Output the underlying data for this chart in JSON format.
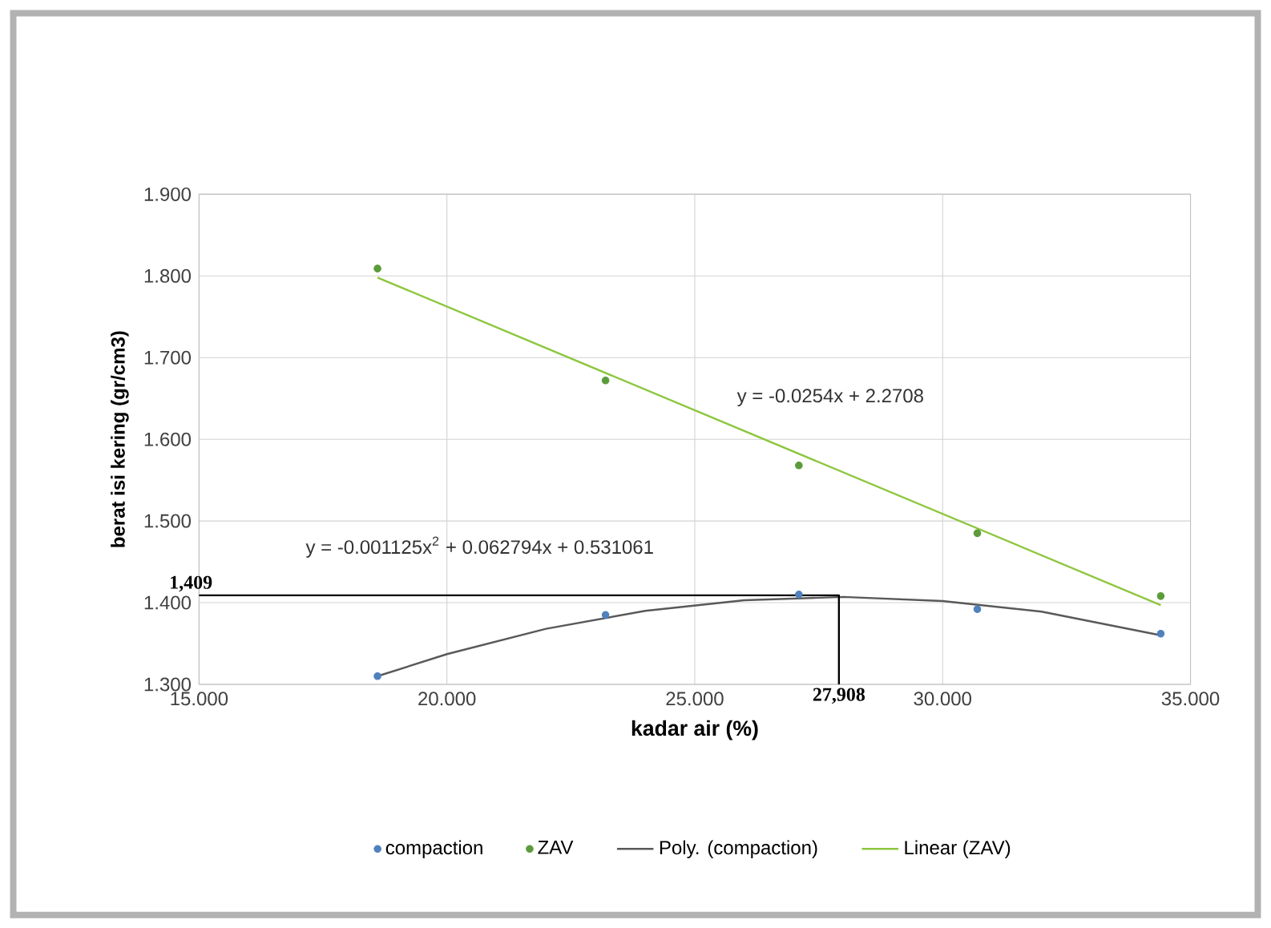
{
  "chart_data": {
    "type": "scatter",
    "xlabel": "kadar air (%)",
    "ylabel": "berat isi kering (gr/cm3)",
    "xlim": [
      15,
      35
    ],
    "ylim": [
      1.3,
      1.9
    ],
    "xticks": [
      {
        "value": 15,
        "label": "15.000"
      },
      {
        "value": 20,
        "label": "20.000"
      },
      {
        "value": 25,
        "label": "25.000"
      },
      {
        "value": 30,
        "label": "30.000"
      },
      {
        "value": 35,
        "label": "35.000"
      }
    ],
    "yticks": [
      {
        "value": 1.3,
        "label": "1.300"
      },
      {
        "value": 1.4,
        "label": "1.400"
      },
      {
        "value": 1.5,
        "label": "1.500"
      },
      {
        "value": 1.6,
        "label": "1.600"
      },
      {
        "value": 1.7,
        "label": "1.700"
      },
      {
        "value": 1.8,
        "label": "1.800"
      },
      {
        "value": 1.9,
        "label": "1.900"
      }
    ],
    "grid": true,
    "legend": "bottom",
    "x": [
      18.6,
      23.2,
      27.1,
      30.7,
      34.4
    ],
    "series": [
      {
        "name": "compaction",
        "marker": "circle",
        "color": "#4f81bd",
        "values": [
          1.31,
          1.385,
          1.41,
          1.392,
          1.362
        ]
      },
      {
        "name": "ZAV",
        "marker": "circle",
        "color": "#5b9b3a",
        "values": [
          1.809,
          1.672,
          1.568,
          1.485,
          1.408
        ]
      },
      {
        "name": "Poly. (compaction)",
        "type": "line",
        "marker": "none",
        "color": "#595959",
        "x": [
          18.6,
          20,
          22,
          24,
          26,
          28,
          30,
          32,
          34.4
        ],
        "values": [
          1.31,
          1.337,
          1.368,
          1.39,
          1.403,
          1.407,
          1.402,
          1.389,
          1.36
        ]
      },
      {
        "name": "Linear (ZAV)",
        "type": "line",
        "marker": "none",
        "color": "#8dc63f",
        "x": [
          18.6,
          34.4
        ],
        "values": [
          1.798,
          1.397
        ]
      },
      {
        "type": "line",
        "marker": "none",
        "color": "#000000",
        "x": [
          15,
          27.908,
          27.908
        ],
        "values": [
          1.409,
          1.409,
          1.3
        ]
      }
    ],
    "annotations": [
      "y = -0.0254x + 2.2708",
      "y = -0.001125x$^{2}$ + 0.062794x + 0.531061",
      {
        "text": "27,908",
        "x": 27.908,
        "y": 1.3
      },
      {
        "text": "1,409",
        "x": 15,
        "y": 1.409
      }
    ]
  }
}
